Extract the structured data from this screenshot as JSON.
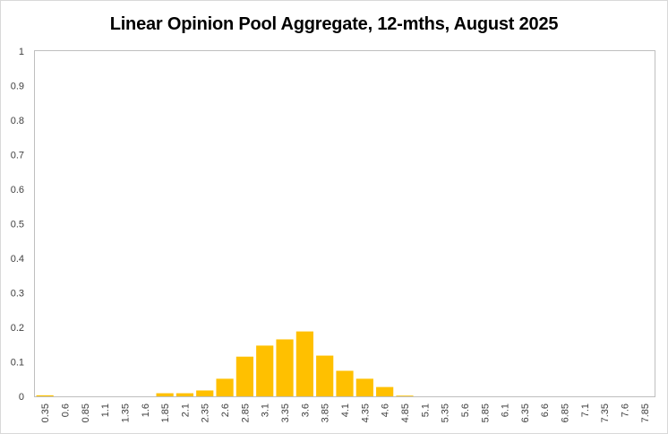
{
  "chart_data": {
    "type": "bar",
    "title": "Linear Opinion Pool Aggregate, 12-mths, August 2025",
    "xlabel": "",
    "ylabel": "",
    "ylim": [
      0,
      1
    ],
    "yticks": [
      "0",
      "0.1",
      "0.2",
      "0.3",
      "0.4",
      "0.5",
      "0.6",
      "0.7",
      "0.8",
      "0.9",
      "1"
    ],
    "grid": false,
    "legend": "none",
    "bar_color": "#FFC000",
    "categories": [
      "0.35",
      "0.6",
      "0.85",
      "1.1",
      "1.35",
      "1.6",
      "1.85",
      "2.1",
      "2.35",
      "2.6",
      "2.85",
      "3.1",
      "3.35",
      "3.6",
      "3.85",
      "4.1",
      "4.35",
      "4.6",
      "4.85",
      "5.1",
      "5.35",
      "5.6",
      "5.85",
      "6.1",
      "6.35",
      "6.6",
      "6.85",
      "7.1",
      "7.35",
      "7.6",
      "7.85"
    ],
    "values": [
      0.003,
      0,
      0,
      0,
      0,
      0,
      0.009,
      0.009,
      0.017,
      0.051,
      0.115,
      0.147,
      0.165,
      0.188,
      0.118,
      0.074,
      0.051,
      0.027,
      0.002,
      0,
      0,
      0,
      0,
      0,
      0,
      0,
      0,
      0,
      0,
      0,
      0
    ]
  }
}
